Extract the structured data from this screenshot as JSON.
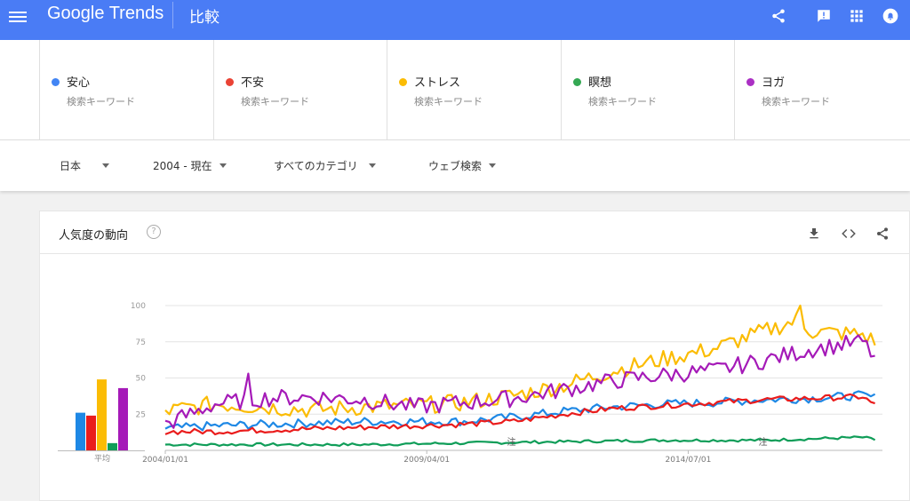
{
  "app": {
    "logo_text": "Google Trends",
    "page_title": "比較",
    "brand_color": "#4a7cf5"
  },
  "appbar_icons": [
    "menu-icon",
    "share-icon",
    "feedback-icon",
    "apps-icon",
    "notifications-icon"
  ],
  "terms": [
    {
      "label": "安心",
      "sub": "検索キーワード",
      "color": "#4285f4"
    },
    {
      "label": "不安",
      "sub": "検索キーワード",
      "color": "#ea4335"
    },
    {
      "label": "ストレス",
      "sub": "検索キーワード",
      "color": "#fbbc04"
    },
    {
      "label": "瞑想",
      "sub": "検索キーワード",
      "color": "#34a853"
    },
    {
      "label": "ヨガ",
      "sub": "検索キーワード",
      "color": "#ab30c4"
    }
  ],
  "filters": {
    "region": "日本",
    "period": "2004 - 現在",
    "category": "すべてのカテゴリ",
    "search_type": "ウェブ検索"
  },
  "card": {
    "title": "人気度の動向",
    "help_symbol": "?",
    "actions": [
      "download-icon",
      "embed-icon",
      "share-icon"
    ]
  },
  "chart_data": {
    "type": "line",
    "x_tick_labels": [
      "2004/01/01",
      "2009/04/01",
      "2014/07/01"
    ],
    "ylim": [
      0,
      100
    ],
    "y_ticks": [
      25,
      50,
      75,
      100
    ],
    "grid": true,
    "annotations": [
      {
        "text": "注",
        "x": "2010/12"
      },
      {
        "text": "注",
        "x": "2016/01"
      }
    ],
    "average_bars": {
      "label": "平均",
      "values": [
        26,
        24,
        49,
        5,
        43
      ]
    },
    "x_start": "2004-01",
    "series": [
      {
        "name": "安心",
        "color": "#1e88e5",
        "anchors": [
          [
            2004.0,
            15
          ],
          [
            2005.0,
            17
          ],
          [
            2006.0,
            18
          ],
          [
            2007.0,
            19
          ],
          [
            2008.0,
            20
          ],
          [
            2009.0,
            20
          ],
          [
            2010.0,
            20
          ],
          [
            2011.0,
            23
          ],
          [
            2012.0,
            27
          ],
          [
            2013.0,
            30
          ],
          [
            2014.0,
            32
          ],
          [
            2015.0,
            33
          ],
          [
            2016.0,
            35
          ],
          [
            2017.0,
            36
          ],
          [
            2018.0,
            38
          ],
          [
            2018.3,
            36
          ]
        ],
        "noise": 3
      },
      {
        "name": "不安",
        "color": "#ea1c1c",
        "anchors": [
          [
            2004.0,
            13
          ],
          [
            2005.0,
            13
          ],
          [
            2006.0,
            14
          ],
          [
            2007.0,
            15
          ],
          [
            2008.0,
            16
          ],
          [
            2009.0,
            17
          ],
          [
            2010.0,
            18
          ],
          [
            2011.0,
            20
          ],
          [
            2012.0,
            25
          ],
          [
            2013.0,
            29
          ],
          [
            2014.0,
            31
          ],
          [
            2015.0,
            33
          ],
          [
            2016.0,
            35
          ],
          [
            2017.0,
            36
          ],
          [
            2018.0,
            37
          ],
          [
            2018.3,
            30
          ]
        ],
        "noise": 2
      },
      {
        "name": "ストレス",
        "color": "#fbbc04",
        "anchors": [
          [
            2004.0,
            27
          ],
          [
            2005.0,
            32
          ],
          [
            2006.0,
            30
          ],
          [
            2007.0,
            28
          ],
          [
            2008.0,
            30
          ],
          [
            2009.0,
            31
          ],
          [
            2010.0,
            33
          ],
          [
            2011.0,
            38
          ],
          [
            2012.0,
            45
          ],
          [
            2013.0,
            55
          ],
          [
            2014.0,
            63
          ],
          [
            2015.0,
            70
          ],
          [
            2016.0,
            82
          ],
          [
            2016.7,
            90
          ],
          [
            2017.0,
            82
          ],
          [
            2018.0,
            80
          ],
          [
            2018.3,
            74
          ]
        ],
        "noise": 6
      },
      {
        "name": "瞑想",
        "color": "#0f9d58",
        "anchors": [
          [
            2004.0,
            4
          ],
          [
            2006.0,
            4
          ],
          [
            2008.0,
            4
          ],
          [
            2010.0,
            5
          ],
          [
            2012.0,
            6
          ],
          [
            2014.0,
            7
          ],
          [
            2016.0,
            7
          ],
          [
            2017.0,
            8
          ],
          [
            2018.0,
            9
          ],
          [
            2018.3,
            7
          ]
        ],
        "noise": 1
      },
      {
        "name": "ヨガ",
        "color": "#a51ab8",
        "anchors": [
          [
            2004.0,
            18
          ],
          [
            2005.0,
            32
          ],
          [
            2006.0,
            36
          ],
          [
            2007.0,
            37
          ],
          [
            2008.0,
            35
          ],
          [
            2009.0,
            30
          ],
          [
            2010.0,
            33
          ],
          [
            2011.0,
            36
          ],
          [
            2012.0,
            42
          ],
          [
            2013.0,
            48
          ],
          [
            2014.0,
            52
          ],
          [
            2015.0,
            55
          ],
          [
            2016.0,
            62
          ],
          [
            2017.0,
            70
          ],
          [
            2018.0,
            75
          ],
          [
            2018.3,
            62
          ]
        ],
        "noise": 6
      }
    ]
  }
}
